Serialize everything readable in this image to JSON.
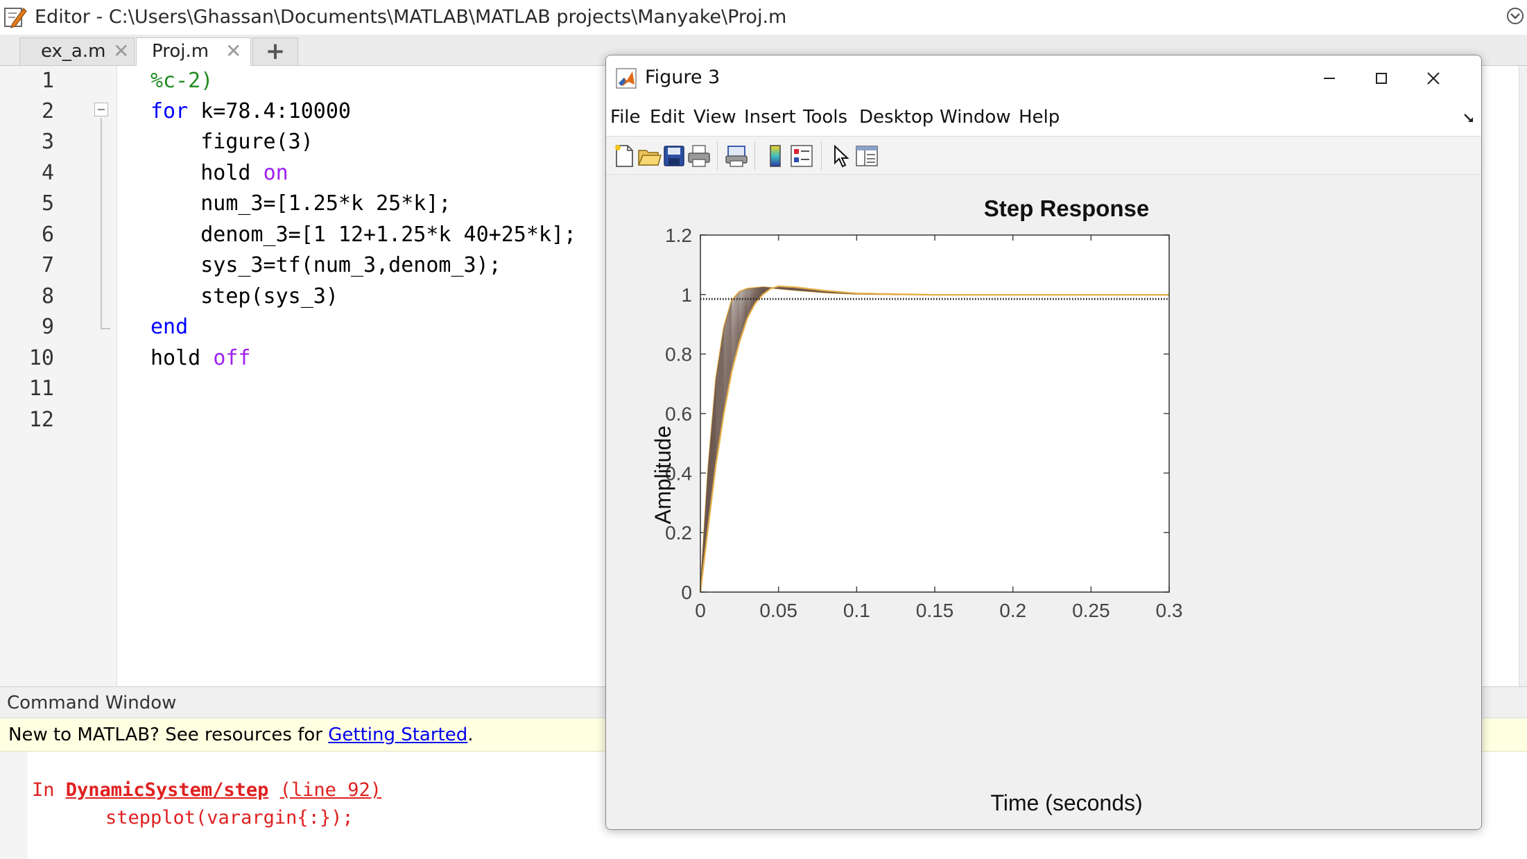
{
  "editor": {
    "title": "Editor - C:\\Users\\Ghassan\\Documents\\MATLAB\\MATLAB projects\\Manyake\\Proj.m",
    "tabs": [
      {
        "label": "ex_a.m",
        "active": false
      },
      {
        "label": "Proj.m",
        "active": true
      }
    ],
    "add_tab_label": "+",
    "line_numbers": [
      "1",
      "2",
      "3",
      "4",
      "5",
      "6",
      "7",
      "8",
      "9",
      "10",
      "11",
      "12"
    ],
    "code": {
      "l1": "%c-2)",
      "l2_kw": "for",
      "l2_rest": " k=78.4:10000",
      "l3": "    figure(3)",
      "l4_a": "    hold ",
      "l4_b": "on",
      "l5": "    num_3=[1.25*k 25*k];",
      "l6": "    denom_3=[1 12+1.25*k 40+25*k];",
      "l7": "    sys_3=tf(num_3,denom_3);",
      "l8": "    step(sys_3)",
      "l9": "end",
      "l10_a": "hold ",
      "l10_b": "off"
    }
  },
  "command_window": {
    "header": "Command Window",
    "banner_text": "New to MATLAB? See resources for ",
    "banner_link": "Getting Started",
    "banner_end": ".",
    "err_in": "In ",
    "err_fn": "DynamicSystem/step",
    "err_line": "(line 92)",
    "err_code": "stepplot(varargin{:});"
  },
  "figure": {
    "title": "Figure 3",
    "menu": [
      "File",
      "Edit",
      "View",
      "Insert",
      "Tools",
      "Desktop",
      "Window",
      "Help"
    ],
    "toolbar_icons": [
      "new-figure-icon",
      "open-file-icon",
      "save-icon",
      "print-icon",
      "link-icon",
      "colorbar-icon",
      "legend-icon",
      "pointer-icon",
      "property-editor-icon"
    ]
  },
  "colors": {
    "accent_curve_light": "#e8b04a",
    "accent_curve_dark": "#6e5a50",
    "keyword": "#0000ff",
    "comment": "#228b22",
    "string": "#a020f0",
    "error": "#e02020"
  },
  "chart_data": {
    "type": "line",
    "title": "Step Response",
    "xlabel": "Time (seconds)",
    "ylabel": "Amplitude",
    "xlim": [
      0,
      0.3
    ],
    "ylim": [
      0,
      1.2
    ],
    "xticks": [
      "0",
      "0.05",
      "0.1",
      "0.15",
      "0.2",
      "0.25",
      "0.3"
    ],
    "yticks": [
      "0",
      "0.2",
      "0.4",
      "0.6",
      "0.8",
      "1",
      "1.2"
    ],
    "grid": false,
    "legend": "none",
    "series": [
      {
        "x": [
          0,
          0.005,
          0.01,
          0.015,
          0.02,
          0.025,
          0.03,
          0.04,
          0.05,
          0.06,
          0.08,
          0.1,
          0.15,
          0.2,
          0.25,
          0.3
        ],
        "y": [
          0,
          0.42,
          0.72,
          0.89,
          0.98,
          1.01,
          1.02,
          1.025,
          1.02,
          1.015,
          1.007,
          1.002,
          0.999,
          0.999,
          0.999,
          0.999
        ]
      },
      {
        "x": [
          0,
          0.005,
          0.01,
          0.015,
          0.02,
          0.025,
          0.03,
          0.035,
          0.04,
          0.05,
          0.06,
          0.08,
          0.1,
          0.15,
          0.2,
          0.25,
          0.3
        ],
        "y": [
          0,
          0.3,
          0.55,
          0.73,
          0.86,
          0.94,
          0.99,
          1.01,
          1.02,
          1.025,
          1.02,
          1.01,
          1.003,
          0.999,
          0.999,
          0.999,
          0.999
        ]
      },
      {
        "x": [
          0,
          0.005,
          0.01,
          0.015,
          0.02,
          0.025,
          0.03,
          0.035,
          0.04,
          0.045,
          0.05,
          0.06,
          0.08,
          0.1,
          0.15,
          0.2,
          0.25,
          0.3
        ],
        "y": [
          0,
          0.22,
          0.43,
          0.6,
          0.74,
          0.84,
          0.92,
          0.97,
          1.0,
          1.02,
          1.028,
          1.025,
          1.013,
          1.004,
          0.999,
          0.999,
          0.999,
          0.999
        ]
      }
    ],
    "final_value_line": 0.985
  }
}
